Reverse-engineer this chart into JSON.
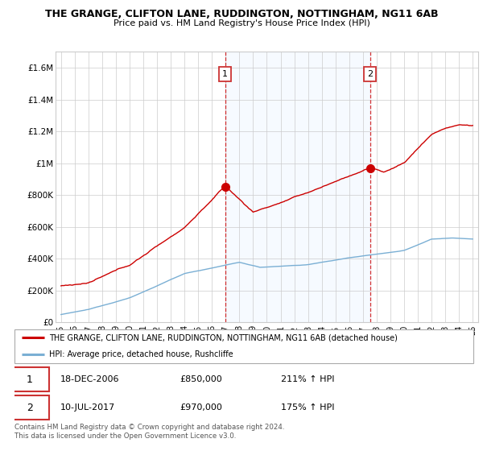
{
  "title": "THE GRANGE, CLIFTON LANE, RUDDINGTON, NOTTINGHAM, NG11 6AB",
  "subtitle": "Price paid vs. HM Land Registry's House Price Index (HPI)",
  "ylim": [
    0,
    1700000
  ],
  "yticks": [
    0,
    200000,
    400000,
    600000,
    800000,
    1000000,
    1200000,
    1400000,
    1600000
  ],
  "ytick_labels": [
    "£0",
    "£200K",
    "£400K",
    "£600K",
    "£800K",
    "£1M",
    "£1.2M",
    "£1.4M",
    "£1.6M"
  ],
  "x_start_year": 1995,
  "x_end_year": 2025,
  "xtick_years": [
    1995,
    1996,
    1997,
    1998,
    1999,
    2000,
    2001,
    2002,
    2003,
    2004,
    2005,
    2006,
    2007,
    2008,
    2009,
    2010,
    2011,
    2012,
    2013,
    2014,
    2015,
    2016,
    2017,
    2018,
    2019,
    2020,
    2021,
    2022,
    2023,
    2024,
    2025
  ],
  "xtick_labels": [
    "95",
    "96",
    "97",
    "98",
    "99",
    "00",
    "01",
    "02",
    "03",
    "04",
    "05",
    "06",
    "07",
    "08",
    "09",
    "10",
    "11",
    "12",
    "13",
    "14",
    "15",
    "16",
    "17",
    "18",
    "19",
    "20",
    "21",
    "22",
    "23",
    "24",
    "25"
  ],
  "property_color": "#cc0000",
  "hpi_color": "#7aafd4",
  "shade_color": "#ddeeff",
  "sale1_x": 2006.96,
  "sale1_y": 850000,
  "sale2_x": 2017.52,
  "sale2_y": 970000,
  "legend_property": "THE GRANGE, CLIFTON LANE, RUDDINGTON, NOTTINGHAM, NG11 6AB (detached house)",
  "legend_hpi": "HPI: Average price, detached house, Rushcliffe",
  "footnote": "Contains HM Land Registry data © Crown copyright and database right 2024.\nThis data is licensed under the Open Government Licence v3.0.",
  "sale1_date": "18-DEC-2006",
  "sale1_price": "£850,000",
  "sale1_hpi": "211% ↑ HPI",
  "sale2_date": "10-JUL-2017",
  "sale2_price": "£970,000",
  "sale2_hpi": "175% ↑ HPI",
  "background_color": "#ffffff"
}
